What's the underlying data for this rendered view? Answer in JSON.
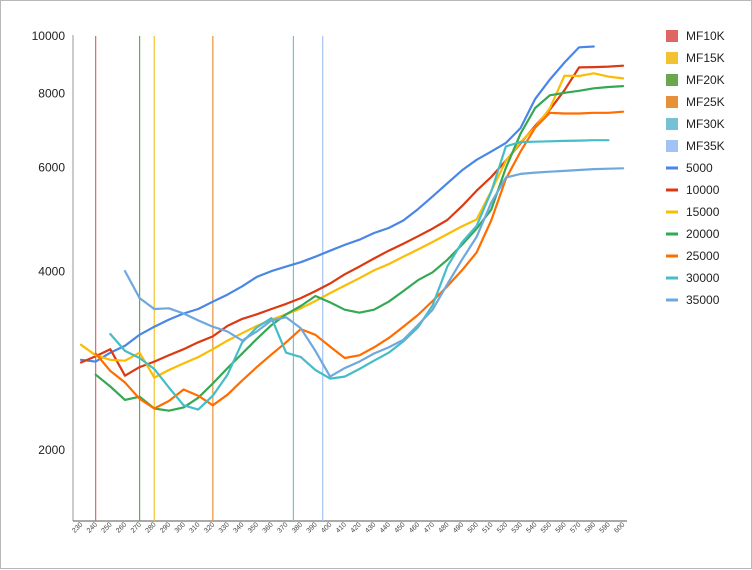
{
  "chart_data": {
    "type": "line",
    "y_scale": "log",
    "ylim": [
      1500,
      10000
    ],
    "y_ticks": [
      "10000",
      "8000",
      "6000",
      "4000",
      "2000"
    ],
    "x": [
      230,
      240,
      250,
      260,
      270,
      280,
      290,
      300,
      310,
      320,
      330,
      340,
      350,
      360,
      370,
      380,
      390,
      400,
      410,
      420,
      430,
      440,
      450,
      460,
      470,
      480,
      490,
      500,
      510,
      520,
      530,
      540,
      550,
      560,
      570,
      580,
      590,
      600
    ],
    "grid": false,
    "legend_position": "right",
    "vertical_markers": [
      {
        "name": "MF10K",
        "x": 240,
        "color": "#e06666"
      },
      {
        "name": "MF15K",
        "x": 280,
        "color": "#f1c232"
      },
      {
        "name": "MF20K",
        "x": 270,
        "color": "#6aa84f"
      },
      {
        "name": "MF25K",
        "x": 320,
        "color": "#e69138"
      },
      {
        "name": "MF30K",
        "x": 375,
        "color": "#76c1d6"
      },
      {
        "name": "MF35K",
        "x": 395,
        "color": "#a4c2f4"
      }
    ],
    "series": [
      {
        "name": "5000",
        "color": "#4a86e8",
        "values": [
          2840,
          2820,
          2920,
          3000,
          3130,
          3230,
          3320,
          3400,
          3460,
          3560,
          3660,
          3780,
          3920,
          4010,
          4080,
          4150,
          4240,
          4340,
          4440,
          4530,
          4650,
          4740,
          4880,
          5100,
          5360,
          5640,
          5930,
          6180,
          6380,
          6600,
          6990,
          7830,
          8440,
          9020,
          9570,
          9600,
          null,
          null
        ]
      },
      {
        "name": "10000",
        "color": "#dc3912",
        "values": [
          2810,
          2880,
          2960,
          2670,
          2760,
          2820,
          2890,
          2960,
          3040,
          3110,
          3240,
          3330,
          3390,
          3460,
          3530,
          3610,
          3710,
          3820,
          3960,
          4080,
          4210,
          4340,
          4460,
          4590,
          4730,
          4890,
          5160,
          5480,
          5780,
          6160,
          6590,
          7050,
          7510,
          8100,
          8850,
          8860,
          8880,
          8910
        ]
      },
      {
        "name": "15000",
        "color": "#fbbc04",
        "values": [
          3010,
          2890,
          2840,
          2830,
          2920,
          2650,
          2730,
          2800,
          2870,
          2960,
          3060,
          3150,
          3240,
          3320,
          3390,
          3470,
          3570,
          3680,
          3790,
          3900,
          4020,
          4120,
          4240,
          4360,
          4490,
          4630,
          4770,
          4900,
          5470,
          6150,
          6620,
          7010,
          7550,
          8570,
          8560,
          8650,
          8540,
          8480
        ]
      },
      {
        "name": "20000",
        "color": "#34a853",
        "values": [
          null,
          2680,
          2560,
          2430,
          2460,
          2350,
          2330,
          2360,
          2450,
          2590,
          2750,
          2910,
          3080,
          3250,
          3390,
          3500,
          3640,
          3550,
          3450,
          3410,
          3450,
          3560,
          3710,
          3870,
          3990,
          4190,
          4440,
          4730,
          5090,
          5990,
          6840,
          7560,
          7940,
          8020,
          8080,
          8160,
          8200,
          8230
        ]
      },
      {
        "name": "25000",
        "color": "#ff6d01",
        "values": [
          null,
          2910,
          2720,
          2600,
          2440,
          2350,
          2420,
          2530,
          2470,
          2380,
          2480,
          2620,
          2760,
          2900,
          3040,
          3200,
          3130,
          2990,
          2860,
          2890,
          2980,
          3090,
          3230,
          3380,
          3570,
          3780,
          4020,
          4310,
          4880,
          5740,
          6380,
          7000,
          7420,
          7400,
          7400,
          7420,
          7420,
          7450
        ]
      },
      {
        "name": "30000",
        "color": "#46bdc6",
        "values": [
          null,
          null,
          3140,
          2940,
          2860,
          2740,
          2550,
          2380,
          2340,
          2470,
          2680,
          3040,
          3220,
          3340,
          2920,
          2870,
          2730,
          2640,
          2660,
          2740,
          2830,
          2920,
          3050,
          3220,
          3510,
          4080,
          4480,
          4780,
          5460,
          6510,
          6620,
          6630,
          6640,
          6650,
          6660,
          6670,
          6670,
          null
        ]
      },
      {
        "name": "35000",
        "color": "#6fa8dc",
        "values": [
          null,
          null,
          null,
          4010,
          3610,
          3460,
          3470,
          3400,
          3310,
          3230,
          3170,
          3060,
          3170,
          3310,
          3350,
          3210,
          2940,
          2660,
          2750,
          2820,
          2910,
          2980,
          3070,
          3250,
          3450,
          3810,
          4190,
          4580,
          5230,
          5770,
          5850,
          5880,
          5900,
          5920,
          5940,
          5960,
          5970,
          5980
        ]
      }
    ]
  }
}
